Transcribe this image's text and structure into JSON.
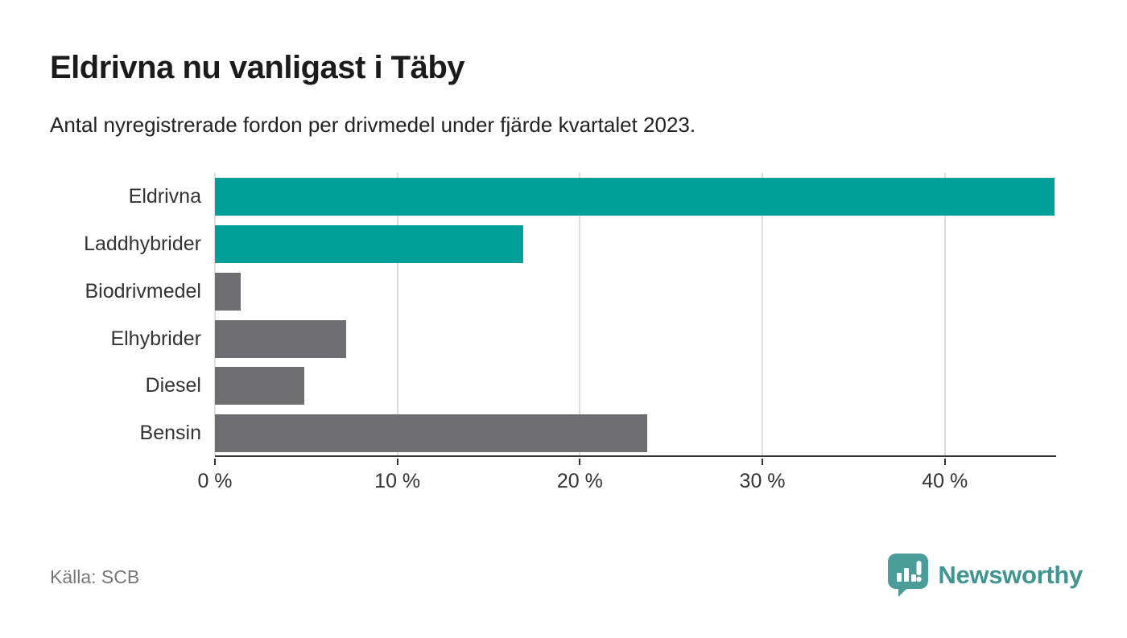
{
  "header": {
    "title": "Eldrivna nu vanligast i Täby",
    "subtitle": "Antal nyregistrerade fordon per drivmedel under fjärde kvartalet 2023."
  },
  "chart_data": {
    "type": "bar",
    "orientation": "horizontal",
    "categories": [
      "Eldrivna",
      "Laddhybrider",
      "Biodrivmedel",
      "Elhybrider",
      "Diesel",
      "Bensin"
    ],
    "values": [
      46.0,
      16.9,
      1.4,
      7.2,
      4.9,
      23.7
    ],
    "unit": "%",
    "series_colors": [
      "#00a099",
      "#00a099",
      "#6d6d72",
      "#6d6d72",
      "#6d6d72",
      "#6d6d72"
    ],
    "title": "Eldrivna nu vanligast i Täby",
    "xlabel": "",
    "ylabel": "",
    "xlim": [
      0,
      46.1
    ],
    "x_ticks": [
      0,
      10,
      20,
      30,
      40
    ],
    "x_tick_labels": [
      "0 %",
      "10 %",
      "20 %",
      "30 %",
      "40 %"
    ],
    "grid": true,
    "gridline_color": "#dddddd",
    "axis_color": "#333333",
    "legend": false
  },
  "colors": {
    "highlight": "#00a099",
    "neutral": "#6d6d72",
    "brand": "#41948f"
  },
  "footer": {
    "source": "Källa: SCB",
    "brand_name": "Newsworthy",
    "logo_icon": "bar-chart-speech-bubble"
  }
}
